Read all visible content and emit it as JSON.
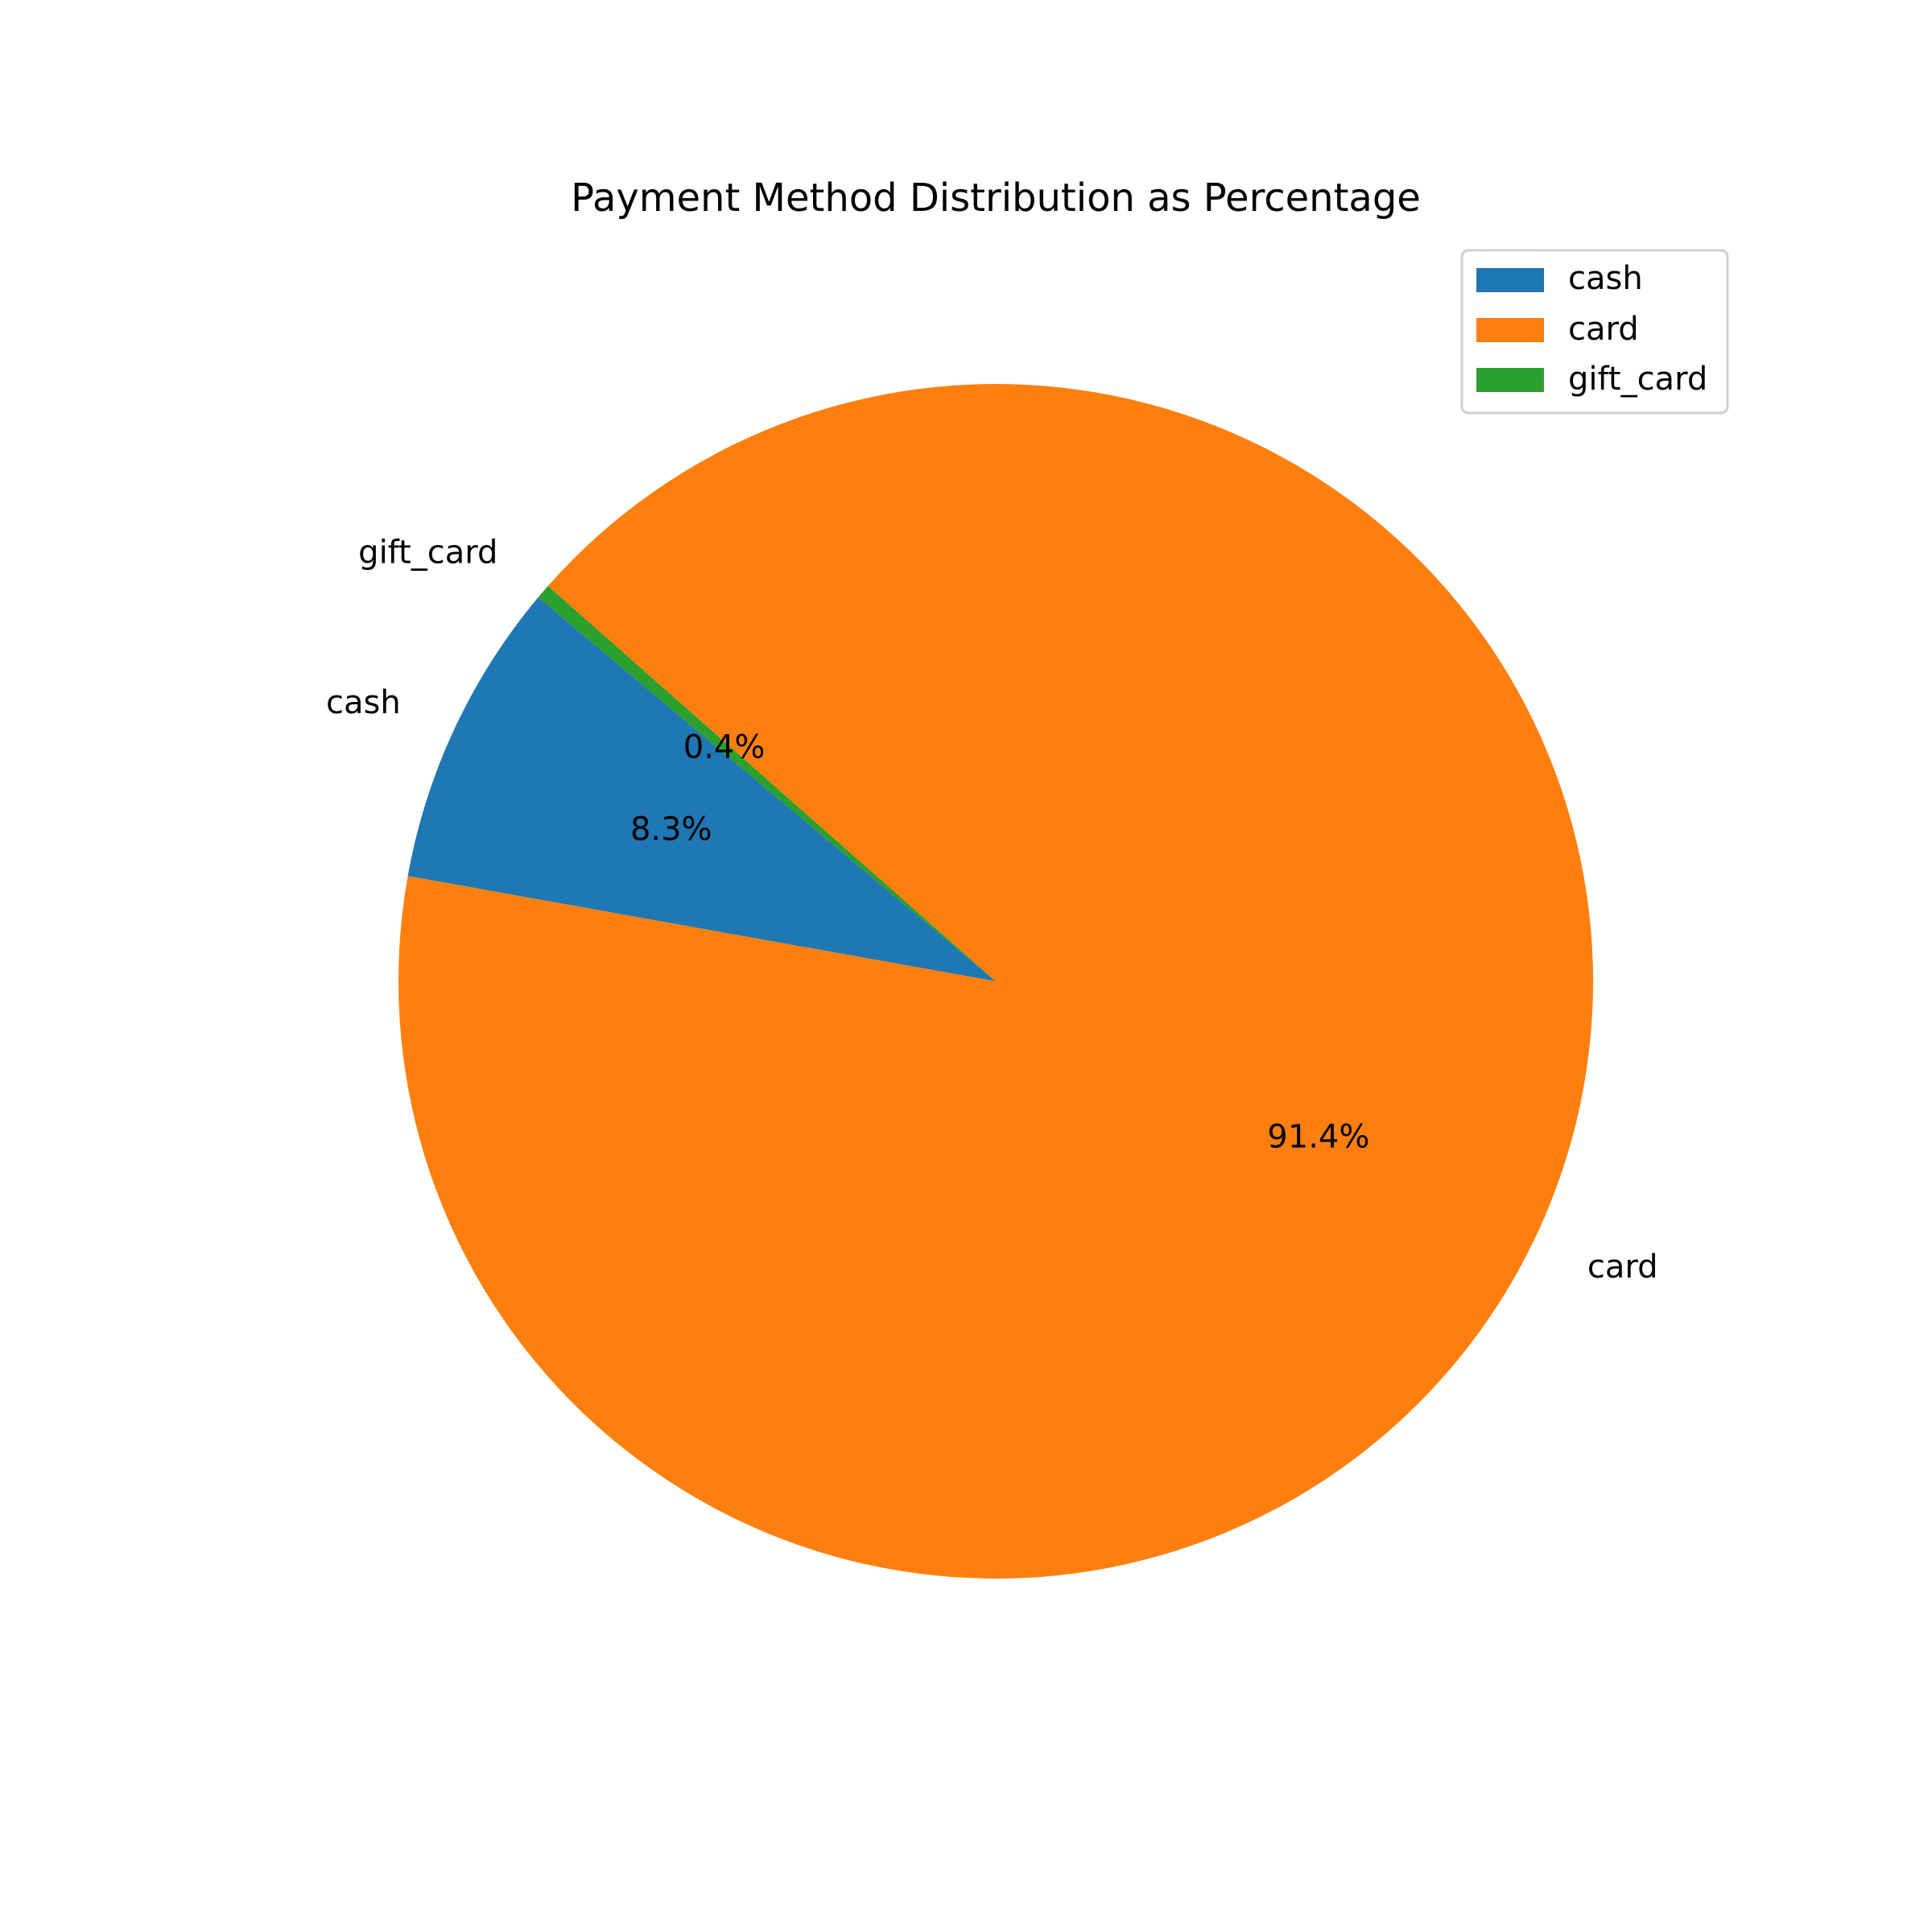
{
  "chart_data": {
    "type": "pie",
    "title": "Payment Method Distribution as Percentage",
    "categories": [
      "cash",
      "card",
      "gift_card"
    ],
    "values": [
      8.3,
      91.4,
      0.4
    ],
    "percent_labels": [
      "8.3%",
      "91.4%",
      "0.4%"
    ],
    "colors": [
      "#1f77b4",
      "#ff7f0e",
      "#2ca02c"
    ],
    "start_angle_deg": 140,
    "direction": "counterclockwise",
    "legend": {
      "placement": "top-right",
      "entries": [
        "cash",
        "card",
        "gift_card"
      ]
    }
  }
}
